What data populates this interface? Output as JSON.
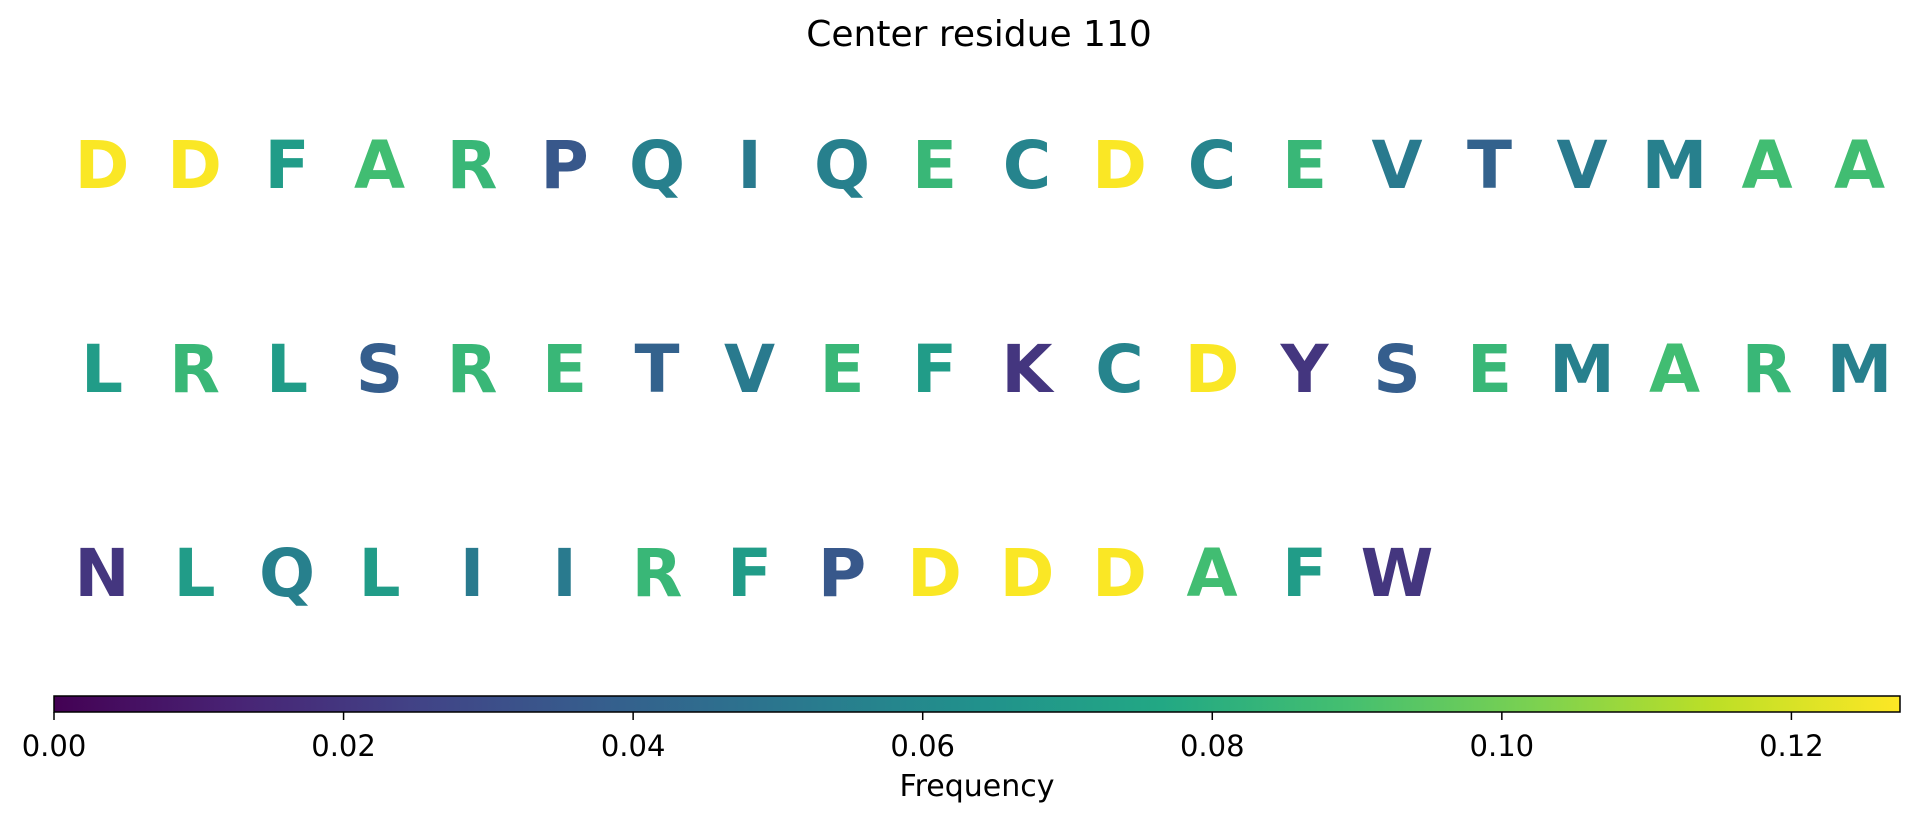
{
  "chart_data": {
    "type": "heatmap",
    "title": "Center residue 110",
    "rows": [
      [
        {
          "residue": "D",
          "frequency": 0.127
        },
        {
          "residue": "D",
          "frequency": 0.127
        },
        {
          "residue": "F",
          "frequency": 0.07
        },
        {
          "residue": "A",
          "frequency": 0.088
        },
        {
          "residue": "R",
          "frequency": 0.085
        },
        {
          "residue": "P",
          "frequency": 0.035
        },
        {
          "residue": "Q",
          "frequency": 0.055
        },
        {
          "residue": "I",
          "frequency": 0.052
        },
        {
          "residue": "Q",
          "frequency": 0.055
        },
        {
          "residue": "E",
          "frequency": 0.085
        },
        {
          "residue": "C",
          "frequency": 0.057
        },
        {
          "residue": "D",
          "frequency": 0.127
        },
        {
          "residue": "C",
          "frequency": 0.057
        },
        {
          "residue": "E",
          "frequency": 0.085
        },
        {
          "residue": "V",
          "frequency": 0.052
        },
        {
          "residue": "T",
          "frequency": 0.04
        },
        {
          "residue": "V",
          "frequency": 0.052
        },
        {
          "residue": "M",
          "frequency": 0.055
        },
        {
          "residue": "A",
          "frequency": 0.088
        },
        {
          "residue": "A",
          "frequency": 0.088
        }
      ],
      [
        {
          "residue": "L",
          "frequency": 0.07
        },
        {
          "residue": "R",
          "frequency": 0.085
        },
        {
          "residue": "L",
          "frequency": 0.07
        },
        {
          "residue": "S",
          "frequency": 0.038
        },
        {
          "residue": "R",
          "frequency": 0.085
        },
        {
          "residue": "E",
          "frequency": 0.085
        },
        {
          "residue": "T",
          "frequency": 0.04
        },
        {
          "residue": "V",
          "frequency": 0.052
        },
        {
          "residue": "E",
          "frequency": 0.085
        },
        {
          "residue": "F",
          "frequency": 0.07
        },
        {
          "residue": "K",
          "frequency": 0.02
        },
        {
          "residue": "C",
          "frequency": 0.057
        },
        {
          "residue": "D",
          "frequency": 0.127
        },
        {
          "residue": "Y",
          "frequency": 0.02
        },
        {
          "residue": "S",
          "frequency": 0.038
        },
        {
          "residue": "E",
          "frequency": 0.085
        },
        {
          "residue": "M",
          "frequency": 0.055
        },
        {
          "residue": "A",
          "frequency": 0.088
        },
        {
          "residue": "R",
          "frequency": 0.085
        },
        {
          "residue": "M",
          "frequency": 0.055
        }
      ],
      [
        {
          "residue": "N",
          "frequency": 0.02
        },
        {
          "residue": "L",
          "frequency": 0.07
        },
        {
          "residue": "Q",
          "frequency": 0.055
        },
        {
          "residue": "L",
          "frequency": 0.07
        },
        {
          "residue": "I",
          "frequency": 0.052
        },
        {
          "residue": "I",
          "frequency": 0.052
        },
        {
          "residue": "R",
          "frequency": 0.085
        },
        {
          "residue": "F",
          "frequency": 0.07
        },
        {
          "residue": "P",
          "frequency": 0.035
        },
        {
          "residue": "D",
          "frequency": 0.127
        },
        {
          "residue": "D",
          "frequency": 0.127
        },
        {
          "residue": "D",
          "frequency": 0.127
        },
        {
          "residue": "A",
          "frequency": 0.088
        },
        {
          "residue": "F",
          "frequency": 0.07
        },
        {
          "residue": "W",
          "frequency": 0.02
        }
      ]
    ],
    "colorbar": {
      "label": "Frequency",
      "colormap": "viridis",
      "range": [
        0.0,
        0.1275
      ],
      "ticks": [
        0.0,
        0.02,
        0.04,
        0.06,
        0.08,
        0.1,
        0.12
      ],
      "tick_labels": [
        "0.00",
        "0.02",
        "0.04",
        "0.06",
        "0.08",
        "0.10",
        "0.12"
      ],
      "orientation": "horizontal",
      "placement": "bottom"
    }
  }
}
